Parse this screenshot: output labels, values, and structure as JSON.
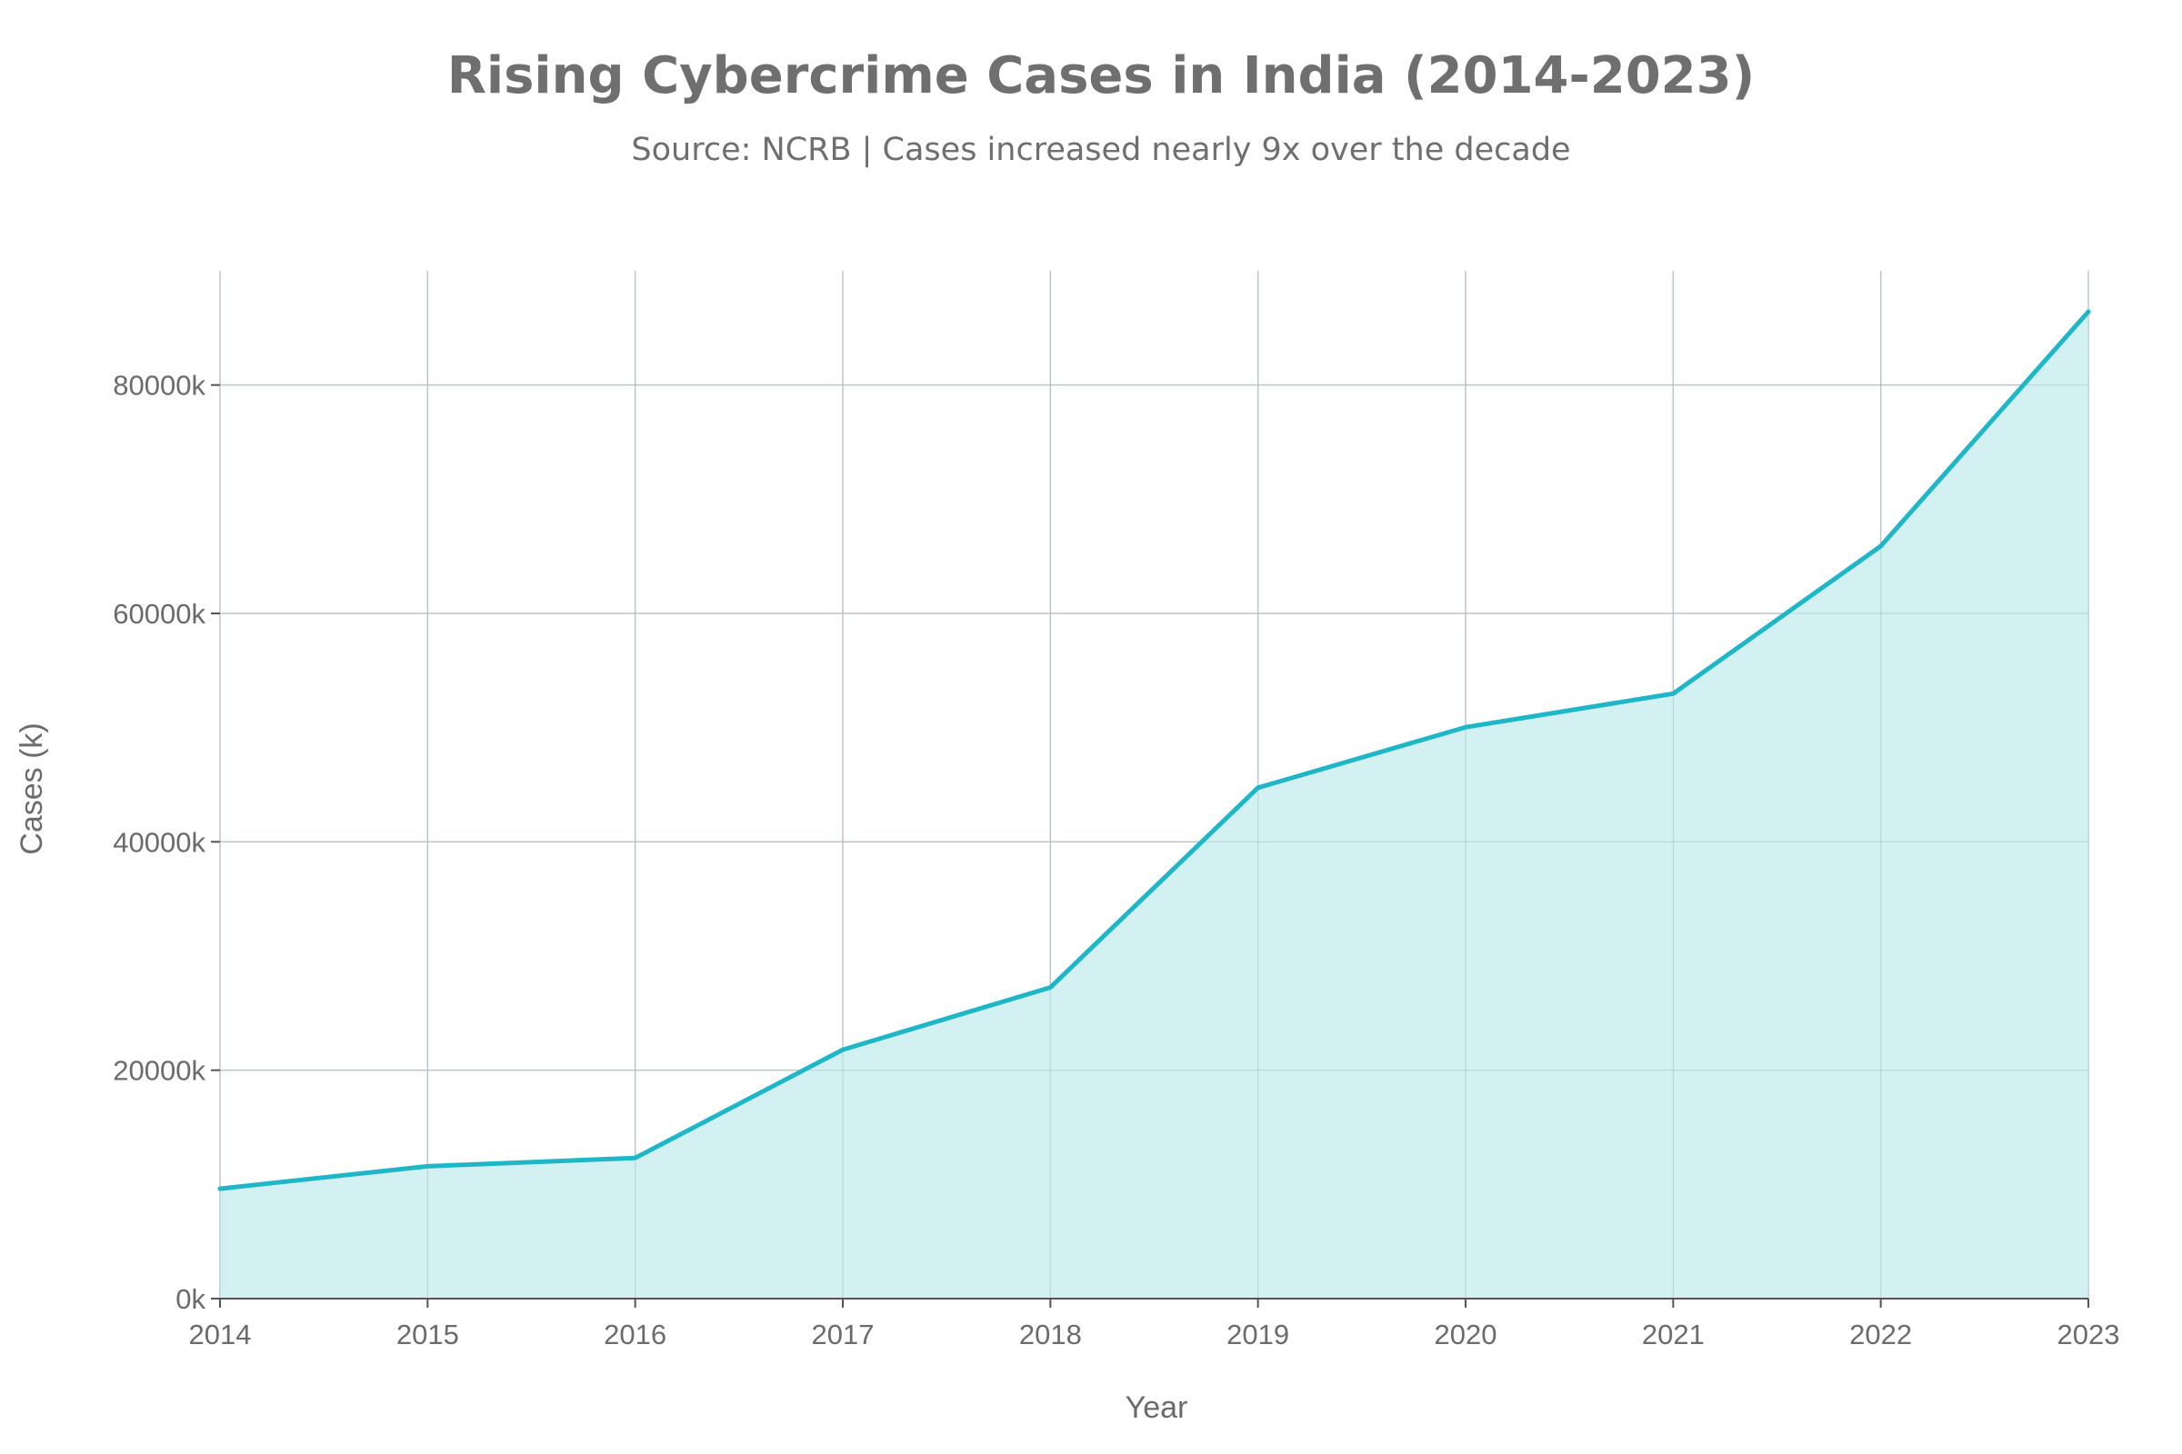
{
  "chart_data": {
    "type": "area",
    "title": "Rising Cybercrime Cases in India (2014-2023)",
    "subtitle": "Source: NCRB | Cases increased nearly 9x over the decade",
    "xlabel": "Year",
    "ylabel": "Cases (k)",
    "x": [
      "2014",
      "2015",
      "2016",
      "2017",
      "2018",
      "2019",
      "2020",
      "2021",
      "2022",
      "2023"
    ],
    "series": [
      {
        "values": [
          9622,
          11592,
          12317,
          21796,
          27248,
          44735,
          50035,
          52974,
          65893,
          86420
        ]
      }
    ],
    "ylim": [
      0,
      90000
    ],
    "yticks": [
      0,
      20000,
      40000,
      60000,
      80000
    ],
    "ytick_labels": [
      "0k",
      "20000k",
      "40000k",
      "60000k",
      "80000k"
    ],
    "grid": true,
    "legend": "none",
    "colors": {
      "line": "#1fb6c8",
      "fill": "#d3f0f3",
      "grid": "#cfcfcf",
      "text": "#6b6b6b"
    }
  }
}
